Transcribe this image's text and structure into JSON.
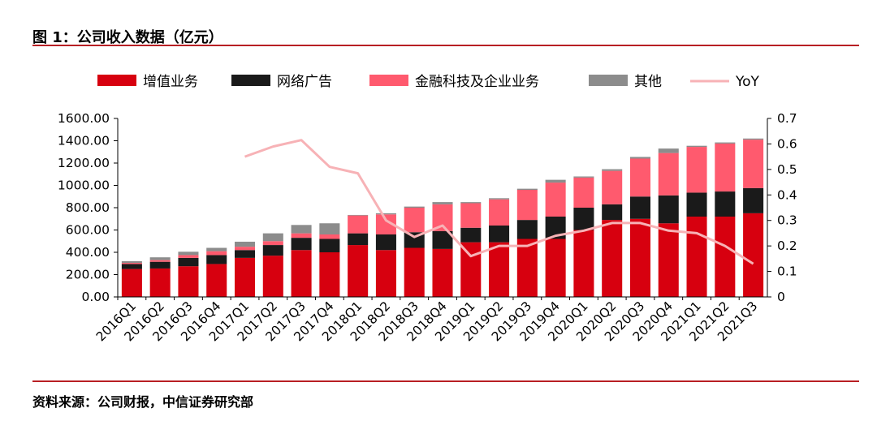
{
  "figure": {
    "title": "图 1：公司收入数据（亿元）",
    "source": "资料来源：公司财报，中信证券研究部"
  },
  "chart_data": {
    "type": "bar",
    "stacked": true,
    "categories": [
      "2016Q1",
      "2016Q2",
      "2016Q3",
      "2016Q4",
      "2017Q1",
      "2017Q2",
      "2017Q3",
      "2017Q4",
      "2018Q1",
      "2018Q2",
      "2018Q3",
      "2018Q4",
      "2019Q1",
      "2019Q2",
      "2019Q3",
      "2019Q4",
      "2020Q1",
      "2020Q2",
      "2020Q3",
      "2020Q4",
      "2021Q1",
      "2021Q2",
      "2021Q3"
    ],
    "series": [
      {
        "name": "增值业务",
        "color": "#d7000f",
        "values": [
          250,
          255,
          275,
          295,
          350,
          370,
          420,
          400,
          465,
          420,
          440,
          430,
          490,
          490,
          520,
          520,
          600,
          690,
          700,
          660,
          720,
          720,
          750
        ]
      },
      {
        "name": "网络广告",
        "color": "#1a1a1a",
        "values": [
          45,
          60,
          75,
          80,
          70,
          95,
          110,
          120,
          105,
          140,
          140,
          160,
          130,
          150,
          170,
          200,
          200,
          140,
          200,
          250,
          215,
          225,
          225
        ]
      },
      {
        "name": "金融科技及企业业务",
        "color": "#ff5a6e",
        "values": [
          10,
          15,
          25,
          35,
          30,
          35,
          40,
          40,
          160,
          180,
          220,
          240,
          220,
          235,
          270,
          305,
          270,
          300,
          340,
          380,
          410,
          430,
          435
        ]
      },
      {
        "name": "其他",
        "color": "#8c8c8c",
        "values": [
          15,
          25,
          30,
          30,
          45,
          70,
          75,
          100,
          5,
          10,
          10,
          20,
          10,
          10,
          10,
          25,
          10,
          15,
          15,
          40,
          10,
          10,
          10
        ]
      }
    ],
    "line_series": {
      "name": "YoY",
      "color": "#f7b2b6",
      "axis": "right",
      "values": [
        null,
        null,
        null,
        null,
        0.55,
        0.59,
        0.615,
        0.51,
        0.485,
        0.3,
        0.235,
        0.28,
        0.16,
        0.2,
        0.2,
        0.24,
        0.26,
        0.29,
        0.29,
        0.26,
        0.25,
        0.2,
        0.13
      ]
    },
    "y_left": {
      "ylim": [
        0,
        1600
      ],
      "ticks": [
        "0.00",
        "200.00",
        "400.00",
        "600.00",
        "800.00",
        "1000.00",
        "1200.00",
        "1400.00",
        "1600.00"
      ]
    },
    "y_right": {
      "ylim": [
        0,
        0.7
      ],
      "ticks": [
        "0",
        "0.1",
        "0.2",
        "0.3",
        "0.4",
        "0.5",
        "0.6",
        "0.7"
      ]
    },
    "legend_position": "top",
    "grid": false
  }
}
